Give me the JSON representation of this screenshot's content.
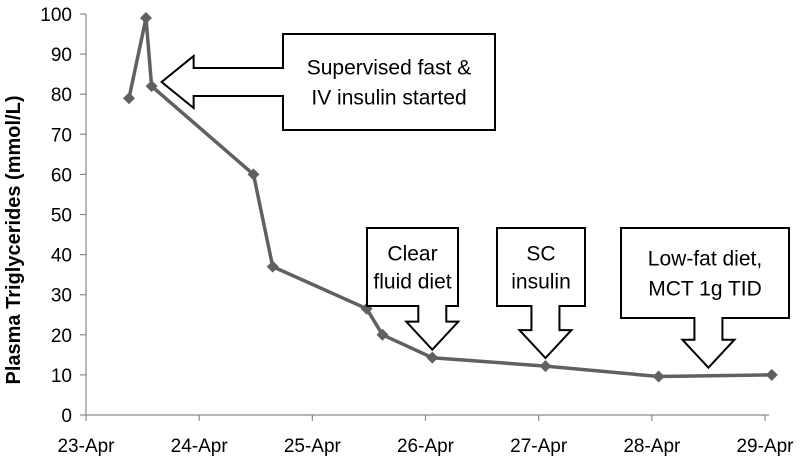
{
  "chart_data": {
    "type": "line",
    "title": "",
    "xlabel": "",
    "ylabel": "Plasma Triglycerides (mmol/L)",
    "ylim": [
      0,
      100
    ],
    "yticks": [
      0,
      10,
      20,
      30,
      40,
      50,
      60,
      70,
      80,
      90,
      100
    ],
    "xlim": [
      0,
      6
    ],
    "xticks": [
      {
        "x": 0,
        "label": "23-Apr"
      },
      {
        "x": 1,
        "label": "24-Apr"
      },
      {
        "x": 2,
        "label": "25-Apr"
      },
      {
        "x": 3,
        "label": "26-Apr"
      },
      {
        "x": 4,
        "label": "27-Apr"
      },
      {
        "x": 5,
        "label": "28-Apr"
      },
      {
        "x": 6,
        "label": "29-Apr"
      }
    ],
    "grid": false,
    "legend": "none",
    "series": [
      {
        "color": "#606060",
        "marker": "diamond",
        "points": [
          {
            "x": 0.38,
            "y": 79
          },
          {
            "x": 0.53,
            "y": 99
          },
          {
            "x": 0.58,
            "y": 82
          },
          {
            "x": 1.48,
            "y": 60
          },
          {
            "x": 1.65,
            "y": 37
          },
          {
            "x": 2.48,
            "y": 26.5
          },
          {
            "x": 2.62,
            "y": 20
          },
          {
            "x": 3.06,
            "y": 14.3
          },
          {
            "x": 4.06,
            "y": 12.2
          },
          {
            "x": 5.06,
            "y": 9.6
          },
          {
            "x": 6.06,
            "y": 10
          }
        ]
      }
    ],
    "annotations": [
      {
        "lines": [
          "Supervised fast &",
          "IV insulin started"
        ],
        "arrow": "left",
        "target": {
          "x": 0.58,
          "y": 82
        }
      },
      {
        "lines": [
          "Clear",
          "fluid diet"
        ],
        "arrow": "down",
        "target": {
          "x": 3.06,
          "y": 14.3
        }
      },
      {
        "lines": [
          "SC",
          "insulin"
        ],
        "arrow": "down",
        "target": {
          "x": 4.06,
          "y": 12.2
        }
      },
      {
        "lines": [
          "Low-fat diet,",
          "MCT 1g TID"
        ],
        "arrow": "down",
        "target": {
          "x": 5.5,
          "y": 9.8
        }
      }
    ]
  }
}
